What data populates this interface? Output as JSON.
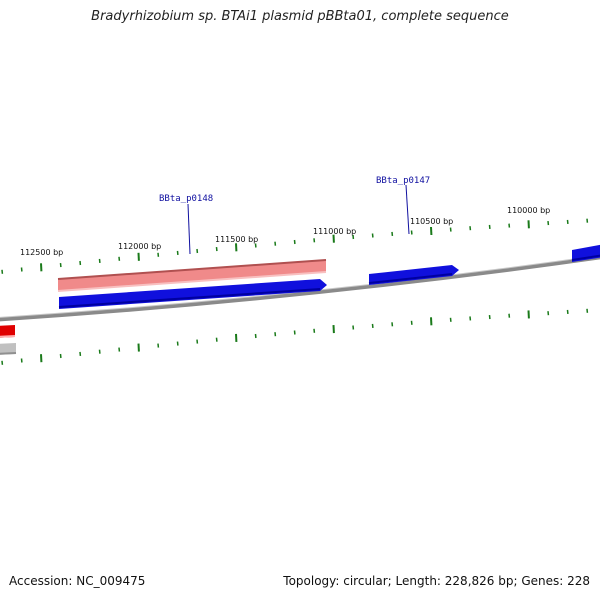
{
  "title": "Bradyrhizobium sp. BTAi1 plasmid pBBta01, complete sequence",
  "footer": {
    "accession": "Accession: NC_009475",
    "summary": "Topology: circular; Length: 228,826 bp; Genes: 228"
  },
  "scale_labels": [
    "112500 bp",
    "112000 bp",
    "111500 bp",
    "111000 bp",
    "110500 bp",
    "110000 bp"
  ],
  "gene_labels": [
    "BBta_p0148",
    "BBta_p0147"
  ],
  "colors": {
    "backbone": "#8a8a8a",
    "forward_gene": "#1010dd",
    "pseudo_gene": "#f08a8a",
    "reverse_gene": "#e00000",
    "tick": "#1a7a1a",
    "label": "#1010a0"
  }
}
